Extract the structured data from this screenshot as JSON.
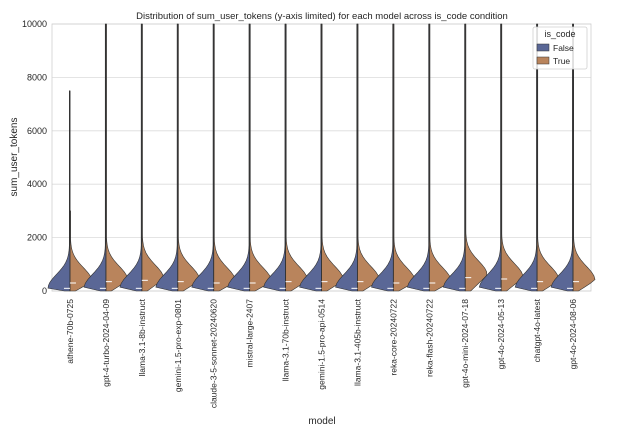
{
  "chart_data": {
    "type": "violin",
    "title": "Distribution of sum_user_tokens (y-axis limited) for each model across is_code condition",
    "xlabel": "model",
    "ylabel": "sum_user_tokens",
    "ylim": [
      0,
      10000
    ],
    "yticks": [
      0,
      2000,
      4000,
      6000,
      8000,
      10000
    ],
    "grid": true,
    "legend": {
      "title": "is_code",
      "position": "top-right",
      "entries": [
        "False",
        "True"
      ]
    },
    "colors": {
      "False": "#5a6796",
      "True": "#b9845c"
    },
    "categories": [
      "athene-70b-0725",
      "gpt-4-turbo-2024-04-09",
      "llama-3.1-8b-instruct",
      "gemini-1.5-pro-exp-0801",
      "claude-3-5-sonnet-20240620",
      "mistral-large-2407",
      "llama-3.1-70b-instruct",
      "gemini-1.5-pro-api-0514",
      "llama-3.1-405b-instruct",
      "reka-core-20240722",
      "reka-flash-20240722",
      "gpt-4o-mini-2024-07-18",
      "gpt-4o-2024-05-13",
      "chatgpt-4o-latest",
      "gpt-4o-2024-08-06"
    ],
    "series": [
      {
        "name": "False",
        "max": [
          7500,
          10000,
          10000,
          10000,
          10000,
          10000,
          10000,
          10000,
          10000,
          10000,
          10000,
          10000,
          10000,
          10000,
          10000
        ],
        "peak": [
          100,
          100,
          100,
          100,
          100,
          100,
          100,
          100,
          100,
          100,
          100,
          100,
          100,
          100,
          100
        ],
        "median": [
          100,
          100,
          100,
          100,
          100,
          100,
          100,
          100,
          100,
          100,
          100,
          100,
          100,
          100,
          100
        ]
      },
      {
        "name": "True",
        "max": [
          3000,
          10000,
          10000,
          10000,
          10000,
          10000,
          10000,
          10000,
          10000,
          10000,
          10000,
          10000,
          10000,
          10000,
          10000
        ],
        "peak": [
          350,
          400,
          450,
          400,
          350,
          350,
          400,
          400,
          400,
          350,
          350,
          600,
          500,
          400,
          400
        ],
        "median": [
          300,
          350,
          400,
          350,
          300,
          300,
          350,
          350,
          350,
          300,
          300,
          500,
          450,
          350,
          350
        ]
      }
    ]
  }
}
